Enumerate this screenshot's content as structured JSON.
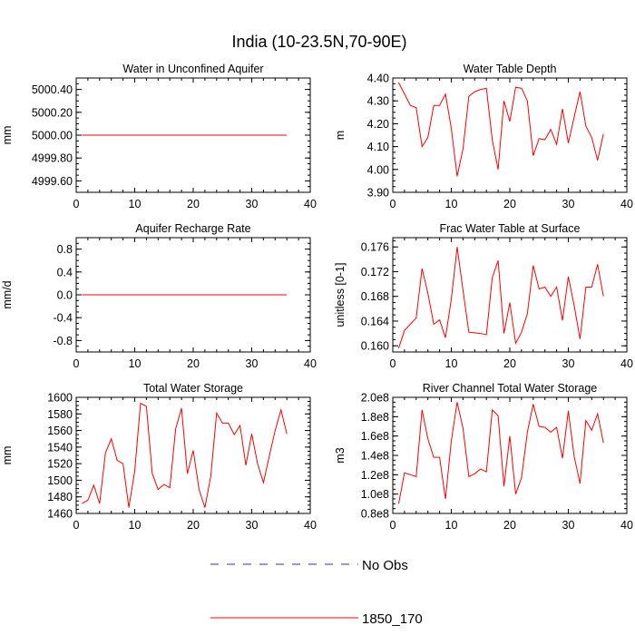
{
  "title": "India (10-23.5N,70-90E)",
  "colors": {
    "model": "#ff0000",
    "obs": "#3333aa",
    "axis": "#000000"
  },
  "legend": {
    "placement": "bottom-center",
    "entries": [
      {
        "label": "No Obs",
        "style": "dashed",
        "color": "#3333aa"
      },
      {
        "label": "1850_170",
        "style": "solid",
        "color": "#ff0000"
      }
    ]
  },
  "chart_data": [
    {
      "type": "line",
      "title": "Water in Unconfined Aquifer",
      "xlabel": "",
      "ylabel": "mm",
      "xlim": [
        0,
        40
      ],
      "ylim": [
        4999.5,
        5000.5
      ],
      "xticks": [
        "0",
        "10",
        "20",
        "30",
        "40"
      ],
      "yticks": [
        {
          "v": 4999.6,
          "label": "4999.60"
        },
        {
          "v": 4999.8,
          "label": "4999.80"
        },
        {
          "v": 5000.0,
          "label": "5000.00"
        },
        {
          "v": 5000.2,
          "label": "5000.20"
        },
        {
          "v": 5000.4,
          "label": "5000.40"
        }
      ],
      "grid": false,
      "series": [
        {
          "name": "1850_170",
          "x_start": 1,
          "values": [
            5000,
            5000,
            5000,
            5000,
            5000,
            5000,
            5000,
            5000,
            5000,
            5000,
            5000,
            5000,
            5000,
            5000,
            5000,
            5000,
            5000,
            5000,
            5000,
            5000,
            5000,
            5000,
            5000,
            5000,
            5000,
            5000,
            5000,
            5000,
            5000,
            5000,
            5000,
            5000,
            5000,
            5000,
            5000,
            5000
          ]
        }
      ]
    },
    {
      "type": "line",
      "title": "Water Table Depth",
      "xlabel": "",
      "ylabel": "m",
      "xlim": [
        0,
        40
      ],
      "ylim": [
        3.9,
        4.4
      ],
      "xticks": [
        "0",
        "10",
        "20",
        "30",
        "40"
      ],
      "yticks": [
        {
          "v": 3.9,
          "label": "3.90"
        },
        {
          "v": 4.0,
          "label": "4.00"
        },
        {
          "v": 4.1,
          "label": "4.10"
        },
        {
          "v": 4.2,
          "label": "4.20"
        },
        {
          "v": 4.3,
          "label": "4.30"
        },
        {
          "v": 4.4,
          "label": "4.40"
        }
      ],
      "grid": false,
      "series": [
        {
          "name": "1850_170",
          "x_start": 1,
          "values": [
            4.38,
            4.33,
            4.28,
            4.27,
            4.1,
            4.14,
            4.28,
            4.28,
            4.33,
            4.18,
            3.97,
            4.09,
            4.32,
            4.34,
            4.35,
            4.355,
            4.13,
            4.0,
            4.3,
            4.21,
            4.36,
            4.355,
            4.3,
            4.06,
            4.135,
            4.13,
            4.175,
            4.11,
            4.265,
            4.115,
            4.23,
            4.34,
            4.19,
            4.14,
            4.04,
            4.155
          ]
        }
      ]
    },
    {
      "type": "line",
      "title": "Aquifer Recharge Rate",
      "xlabel": "",
      "ylabel": "mm/d",
      "xlim": [
        0,
        40
      ],
      "ylim": [
        -1.0,
        1.0
      ],
      "xticks": [
        "0",
        "10",
        "20",
        "30",
        "40"
      ],
      "yticks": [
        {
          "v": -0.8,
          "label": "-0.8"
        },
        {
          "v": -0.4,
          "label": "-0.4"
        },
        {
          "v": 0.0,
          "label": "0.0"
        },
        {
          "v": 0.4,
          "label": "0.4"
        },
        {
          "v": 0.8,
          "label": "0.8"
        }
      ],
      "grid": false,
      "series": [
        {
          "name": "1850_170",
          "x_start": 1,
          "values": [
            0,
            0,
            0,
            0,
            0,
            0,
            0,
            0,
            0,
            0,
            0,
            0,
            0,
            0,
            0,
            0,
            0,
            0,
            0,
            0,
            0,
            0,
            0,
            0,
            0,
            0,
            0,
            0,
            0,
            0,
            0,
            0,
            0,
            0,
            0,
            0
          ]
        }
      ]
    },
    {
      "type": "line",
      "title": "Frac Water Table at Surface",
      "xlabel": "",
      "ylabel": "unitless [0-1]",
      "xlim": [
        0,
        40
      ],
      "ylim": [
        0.159,
        0.1775
      ],
      "xticks": [
        "0",
        "10",
        "20",
        "30",
        "40"
      ],
      "yticks": [
        {
          "v": 0.16,
          "label": "0.160"
        },
        {
          "v": 0.164,
          "label": "0.164"
        },
        {
          "v": 0.168,
          "label": "0.168"
        },
        {
          "v": 0.172,
          "label": "0.172"
        },
        {
          "v": 0.176,
          "label": "0.176"
        }
      ],
      "grid": false,
      "series": [
        {
          "name": "1850_170",
          "x_start": 1,
          "values": [
            0.1596,
            0.1625,
            0.1635,
            0.1645,
            0.1725,
            0.1685,
            0.1635,
            0.1642,
            0.1613,
            0.1675,
            0.176,
            0.169,
            0.1622,
            0.1621,
            0.162,
            0.1618,
            0.171,
            0.1738,
            0.162,
            0.167,
            0.1604,
            0.1622,
            0.1652,
            0.173,
            0.1692,
            0.1695,
            0.168,
            0.1695,
            0.1641,
            0.1712,
            0.1665,
            0.1611,
            0.1695,
            0.1695,
            0.1732,
            0.168
          ]
        }
      ]
    },
    {
      "type": "line",
      "title": "Total Water Storage",
      "xlabel": "",
      "ylabel": "mm",
      "xlim": [
        0,
        40
      ],
      "ylim": [
        1460,
        1600
      ],
      "xticks": [
        "0",
        "10",
        "20",
        "30",
        "40"
      ],
      "yticks": [
        {
          "v": 1460,
          "label": "1460"
        },
        {
          "v": 1480,
          "label": "1480"
        },
        {
          "v": 1500,
          "label": "1500"
        },
        {
          "v": 1520,
          "label": "1520"
        },
        {
          "v": 1540,
          "label": "1540"
        },
        {
          "v": 1560,
          "label": "1560"
        },
        {
          "v": 1580,
          "label": "1580"
        },
        {
          "v": 1600,
          "label": "1600"
        }
      ],
      "grid": false,
      "series": [
        {
          "name": "1850_170",
          "x_start": 1,
          "values": [
            1472,
            1476,
            1494,
            1472,
            1533,
            1550,
            1524,
            1520,
            1467,
            1511,
            1593,
            1589,
            1508,
            1489,
            1495,
            1491,
            1562,
            1587,
            1508,
            1536,
            1489,
            1467,
            1505,
            1581,
            1569,
            1569,
            1555,
            1566,
            1518,
            1556,
            1520,
            1497,
            1529,
            1560,
            1585,
            1556
          ]
        }
      ]
    },
    {
      "type": "line",
      "title": "River Channel Total Water Storage",
      "xlabel": "",
      "ylabel": "m3",
      "xlim": [
        0,
        40
      ],
      "ylim": [
        0.8,
        2.0
      ],
      "y_multiplier": 100000000,
      "xticks": [
        "0",
        "10",
        "20",
        "30",
        "40"
      ],
      "yticks": [
        {
          "v": 0.8,
          "label": "0.8e8"
        },
        {
          "v": 1.0,
          "label": "1.0e8"
        },
        {
          "v": 1.2,
          "label": "1.2e8"
        },
        {
          "v": 1.4,
          "label": "1.4e8"
        },
        {
          "v": 1.6,
          "label": "1.6e8"
        },
        {
          "v": 1.8,
          "label": "1.8e8"
        },
        {
          "v": 2.0,
          "label": "2.0e8"
        }
      ],
      "grid": false,
      "series": [
        {
          "name": "1850_170",
          "x_start": 1,
          "values": [
            0.9,
            1.22,
            1.2,
            1.18,
            1.87,
            1.57,
            1.38,
            1.38,
            0.95,
            1.55,
            1.95,
            1.68,
            1.18,
            1.21,
            1.26,
            1.23,
            1.87,
            1.81,
            1.08,
            1.6,
            1.0,
            1.17,
            1.64,
            1.93,
            1.7,
            1.69,
            1.64,
            1.69,
            1.37,
            1.86,
            1.39,
            1.11,
            1.76,
            1.66,
            1.83,
            1.53
          ]
        }
      ]
    }
  ]
}
